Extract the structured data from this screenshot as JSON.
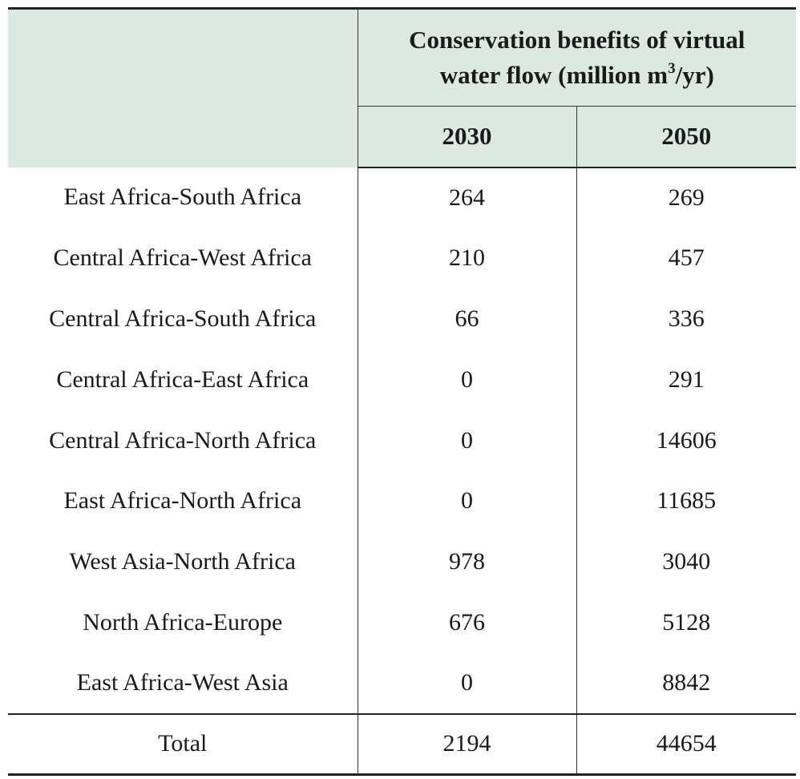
{
  "header": {
    "group_line1": "Conservation benefits of virtual",
    "group_line2_before": "water flow (million m",
    "group_line2_sup": "3",
    "group_line2_after": "/yr)",
    "year_1": "2030",
    "year_2": "2050"
  },
  "rows": [
    {
      "route": "East Africa-South Africa",
      "v2030": "264",
      "v2050": "269"
    },
    {
      "route": "Central Africa-West Africa",
      "v2030": "210",
      "v2050": "457"
    },
    {
      "route": "Central Africa-South Africa",
      "v2030": "66",
      "v2050": "336"
    },
    {
      "route": "Central Africa-East Africa",
      "v2030": "0",
      "v2050": "291"
    },
    {
      "route": "Central Africa-North Africa",
      "v2030": "0",
      "v2050": "14606"
    },
    {
      "route": "East Africa-North Africa",
      "v2030": "0",
      "v2050": "11685"
    },
    {
      "route": "West Asia-North Africa",
      "v2030": "978",
      "v2050": "3040"
    },
    {
      "route": "North Africa-Europe",
      "v2030": "676",
      "v2050": "5128"
    },
    {
      "route": "East Africa-West Asia",
      "v2030": "0",
      "v2050": "8842"
    }
  ],
  "total": {
    "label": "Total",
    "v2030": "2194",
    "v2050": "44654"
  },
  "colors": {
    "header_bg": "#dce9e1",
    "rule": "#222222"
  }
}
